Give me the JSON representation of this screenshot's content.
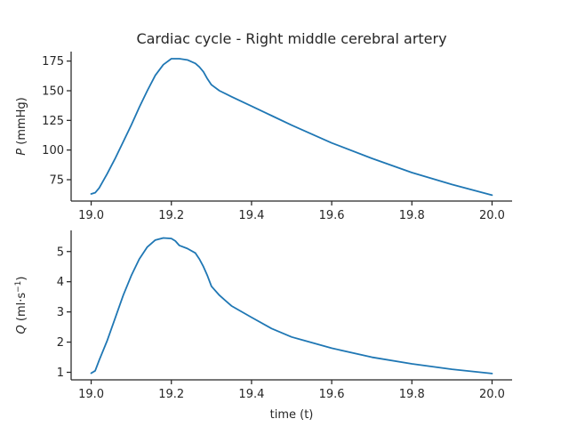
{
  "chart_data": [
    {
      "type": "line",
      "title": "Cardiac cycle - Right middle cerebral artery",
      "ylabel": "P (mmHg)",
      "ylabel_parts": {
        "italic": "P",
        "rest": " (mmHg)"
      },
      "xlabel": "",
      "xlim": [
        18.95,
        20.05
      ],
      "ylim": [
        57,
        183
      ],
      "xticks": [
        19.0,
        19.2,
        19.4,
        19.6,
        19.8,
        20.0
      ],
      "xtick_labels": [
        "19.0",
        "19.2",
        "19.4",
        "19.6",
        "19.8",
        "20.0"
      ],
      "yticks": [
        75,
        100,
        125,
        150,
        175
      ],
      "ytick_labels": [
        "75",
        "100",
        "125",
        "150",
        "175"
      ],
      "grid": false,
      "color": "#1f77b4",
      "x": [
        19.0,
        19.01,
        19.02,
        19.04,
        19.06,
        19.08,
        19.1,
        19.12,
        19.14,
        19.16,
        19.18,
        19.2,
        19.22,
        19.24,
        19.26,
        19.27,
        19.28,
        19.29,
        19.3,
        19.32,
        19.35,
        19.4,
        19.45,
        19.5,
        19.6,
        19.7,
        19.8,
        19.9,
        20.0
      ],
      "y": [
        63,
        64,
        68,
        80,
        93,
        107,
        121,
        136,
        150,
        163,
        172,
        177,
        177,
        176,
        173,
        170,
        166,
        160,
        155,
        150,
        145,
        137,
        129,
        121,
        106,
        93,
        81,
        71,
        62
      ]
    },
    {
      "type": "line",
      "title": "",
      "ylabel": "Q (ml·s−1)",
      "ylabel_parts": {
        "italic": "Q",
        "rest": " (ml·s",
        "sup": "−1",
        "end": ")"
      },
      "xlabel": "time (t)",
      "xlim": [
        18.95,
        20.05
      ],
      "ylim": [
        0.75,
        5.7
      ],
      "xticks": [
        19.0,
        19.2,
        19.4,
        19.6,
        19.8,
        20.0
      ],
      "xtick_labels": [
        "19.0",
        "19.2",
        "19.4",
        "19.6",
        "19.8",
        "20.0"
      ],
      "yticks": [
        1,
        2,
        3,
        4,
        5
      ],
      "ytick_labels": [
        "1",
        "2",
        "3",
        "4",
        "5"
      ],
      "grid": false,
      "color": "#1f77b4",
      "x": [
        19.0,
        19.01,
        19.02,
        19.04,
        19.06,
        19.08,
        19.1,
        19.12,
        19.14,
        19.16,
        19.18,
        19.2,
        19.21,
        19.22,
        19.24,
        19.26,
        19.27,
        19.28,
        19.29,
        19.3,
        19.32,
        19.35,
        19.4,
        19.45,
        19.5,
        19.6,
        19.7,
        19.8,
        19.9,
        20.0
      ],
      "y": [
        0.97,
        1.05,
        1.4,
        2.05,
        2.8,
        3.55,
        4.2,
        4.75,
        5.15,
        5.38,
        5.45,
        5.43,
        5.35,
        5.2,
        5.1,
        4.95,
        4.75,
        4.5,
        4.2,
        3.85,
        3.55,
        3.2,
        2.82,
        2.45,
        2.17,
        1.8,
        1.5,
        1.28,
        1.1,
        0.96
      ]
    }
  ]
}
